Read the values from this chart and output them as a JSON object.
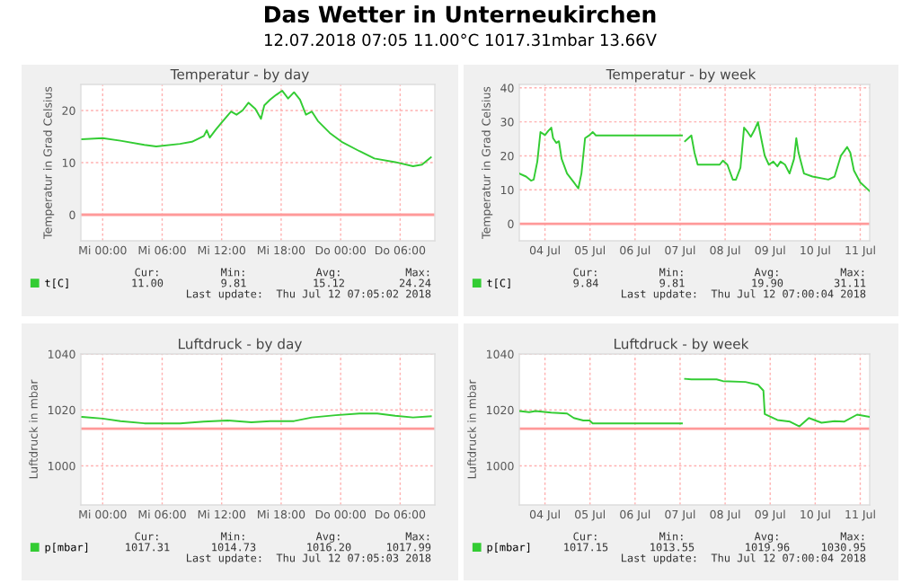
{
  "chart_data": [
    {
      "type": "other",
      "title": "Das Wetter in Unterneukirchen",
      "subtitle": "12.07.2018 07:05 11.00°C 1017.31mbar 13.66V"
    },
    {
      "type": "line",
      "title": "Temperatur - by day",
      "ylabel": "Temperatur in Grad Celsius",
      "x": [
        "2018-07-10T21:56",
        "2018-07-11T00:00",
        "2018-07-11T01:48",
        "2018-07-11T04:12",
        "2018-07-11T05:24",
        "2018-07-11T07:48",
        "2018-07-11T09:00",
        "2018-07-11T10:12",
        "2018-07-11T10:30",
        "2018-07-11T10:48",
        "2018-07-11T11:24",
        "2018-07-11T12:00",
        "2018-07-11T12:57",
        "2018-07-11T13:30",
        "2018-07-11T14:06",
        "2018-07-11T14:42",
        "2018-07-11T15:24",
        "2018-07-11T15:58",
        "2018-07-11T16:18",
        "2018-07-11T16:54",
        "2018-07-11T17:30",
        "2018-07-11T18:06",
        "2018-07-11T18:42",
        "2018-07-11T19:18",
        "2018-07-11T19:54",
        "2018-07-11T20:30",
        "2018-07-11T21:06",
        "2018-07-11T21:42",
        "2018-07-11T22:54",
        "2018-07-12T00:06",
        "2018-07-12T01:54",
        "2018-07-12T03:24",
        "2018-07-12T05:30",
        "2018-07-12T07:18",
        "2018-07-12T08:12",
        "2018-07-12T09:06"
      ],
      "series": [
        {
          "name": "t[C]",
          "color": "#33cc33",
          "values": [
            14.5,
            14.7,
            14.2,
            13.4,
            13.1,
            13.6,
            14.0,
            15.1,
            16.2,
            14.8,
            16.3,
            17.7,
            19.8,
            19.2,
            20.0,
            21.5,
            20.3,
            18.4,
            21.0,
            22.1,
            23.0,
            23.8,
            22.3,
            23.5,
            22.1,
            19.2,
            19.8,
            18.0,
            15.7,
            14.0,
            12.2,
            10.8,
            10.1,
            9.3,
            9.6,
            11.0
          ]
        }
      ],
      "xlim": [
        "2018-07-10T21:48",
        "2018-07-12T09:30"
      ],
      "ylim": [
        -5,
        25
      ],
      "xticks": [
        {
          "value": "2018-07-11T00:00",
          "label": "Mi 00:00"
        },
        {
          "value": "2018-07-11T06:00",
          "label": "Mi 06:00"
        },
        {
          "value": "2018-07-11T12:00",
          "label": "Mi 12:00"
        },
        {
          "value": "2018-07-11T18:00",
          "label": "Mi 18:00"
        },
        {
          "value": "2018-07-12T00:00",
          "label": "Do 00:00"
        },
        {
          "value": "2018-07-12T06:00",
          "label": "Do 06:00"
        }
      ],
      "yticks": [
        0,
        10,
        20
      ],
      "grid": true,
      "legend": "bottom left",
      "ref_lines": [
        {
          "axis": "y",
          "value": 0,
          "color": "#ff9999"
        }
      ],
      "annotations": [
        "Cur:",
        "Min:",
        "Avg:",
        "Max:",
        "11.00",
        "9.81",
        "15.12",
        "24.24",
        "Last update:  Thu Jul 12 07:05:02 2018"
      ]
    },
    {
      "type": "line",
      "title": "Temperatur - by week",
      "ylabel": "Temperatur in Grad Celsius",
      "x": [
        "2018-07-03T22:19",
        "2018-07-04T01:55",
        "2018-07-04T04:34",
        "2018-07-04T06:00",
        "2018-07-04T07:55",
        "2018-07-04T09:36",
        "2018-07-04T12:00",
        "2018-07-04T13:41",
        "2018-07-04T15:22",
        "2018-07-04T16:19",
        "2018-07-04T18:00",
        "2018-07-04T19:26",
        "2018-07-04T20:53",
        "2018-07-04T23:46",
        "2018-07-05T03:22",
        "2018-07-05T05:46",
        "2018-07-05T07:26",
        "2018-07-05T09:22",
        "2018-07-05T11:46",
        "2018-07-05T13:26",
        "2018-07-05T15:07",
        "2018-07-07T12:58",
        "2018-07-07T13:26",
        "2018-07-07T14:38",
        "2018-07-07T18:00",
        "2018-07-07T19:41",
        "2018-07-07T21:22",
        "2018-07-08T09:07",
        "2018-07-08T10:48",
        "2018-07-08T13:12",
        "2018-07-08T16:05",
        "2018-07-08T17:46",
        "2018-07-08T20:10",
        "2018-07-08T22:05",
        "2018-07-09T00:00",
        "2018-07-09T01:41",
        "2018-07-09T03:22",
        "2018-07-09T05:31",
        "2018-07-09T07:12",
        "2018-07-09T09:07",
        "2018-07-09T11:17",
        "2018-07-09T13:41",
        "2018-07-09T15:50",
        "2018-07-09T17:31",
        "2018-07-09T19:55",
        "2018-07-09T22:19",
        "2018-07-10T00:43",
        "2018-07-10T01:55",
        "2018-07-10T03:07",
        "2018-07-10T06:00",
        "2018-07-10T10:34",
        "2018-07-10T18:58",
        "2018-07-10T22:19",
        "2018-07-11T01:41",
        "2018-07-11T05:02",
        "2018-07-11T06:43",
        "2018-07-11T08:38",
        "2018-07-11T12:00",
        "2018-07-11T17:02"
      ],
      "series": [
        {
          "name": "t[C]",
          "color": "#33cc33",
          "values": [
            14.8,
            13.9,
            12.7,
            13.0,
            18.3,
            27.0,
            26.1,
            27.3,
            28.3,
            25.2,
            23.8,
            24.3,
            19.1,
            14.8,
            12.2,
            10.4,
            14.8,
            25.2,
            26.1,
            27.0,
            26.0,
            26.0,
            null,
            24.3,
            26.0,
            20.9,
            17.4,
            17.4,
            18.6,
            17.4,
            13.0,
            13.0,
            16.5,
            28.3,
            27.0,
            25.6,
            27.3,
            29.9,
            25.2,
            20.0,
            17.4,
            18.3,
            16.9,
            18.3,
            17.4,
            14.8,
            19.1,
            25.2,
            20.9,
            14.8,
            13.9,
            13.0,
            13.9,
            20.0,
            22.6,
            20.9,
            15.7,
            12.2,
            9.6
          ]
        }
      ],
      "xlim": [
        "2018-07-03T22:19",
        "2018-07-11T17:02"
      ],
      "ylim": [
        -5,
        41
      ],
      "xticks": [
        {
          "value": "2018-07-04T12:00",
          "label": "04 Jul"
        },
        {
          "value": "2018-07-05T12:00",
          "label": "05 Jul"
        },
        {
          "value": "2018-07-06T12:00",
          "label": "06 Jul"
        },
        {
          "value": "2018-07-07T12:00",
          "label": "07 Jul"
        },
        {
          "value": "2018-07-08T12:00",
          "label": "08 Jul"
        },
        {
          "value": "2018-07-09T12:00",
          "label": "09 Jul"
        },
        {
          "value": "2018-07-10T12:00",
          "label": "10 Jul"
        },
        {
          "value": "2018-07-11T12:00",
          "label": "11 Jul"
        }
      ],
      "yticks": [
        0,
        10,
        20,
        30,
        40
      ],
      "grid": true,
      "legend": "bottom left",
      "ref_lines": [
        {
          "axis": "y",
          "value": 0,
          "color": "#ff9999"
        }
      ],
      "annotations": [
        "Cur:",
        "Min:",
        "Avg:",
        "Max:",
        "9.84",
        "9.81",
        "19.90",
        "31.11",
        "Last update:  Thu Jul 12 07:00:04 2018"
      ]
    },
    {
      "type": "line",
      "title": "Luftdruck - by day",
      "ylabel": "Luftdruck in mbar",
      "x": [
        "2018-07-10T21:56",
        "2018-07-11T00:00",
        "2018-07-11T01:48",
        "2018-07-11T04:12",
        "2018-07-11T07:48",
        "2018-07-11T10:12",
        "2018-07-11T12:36",
        "2018-07-11T15:00",
        "2018-07-11T16:54",
        "2018-07-11T19:18",
        "2018-07-11T21:06",
        "2018-07-11T23:30",
        "2018-07-12T01:54",
        "2018-07-12T03:42",
        "2018-07-12T05:30",
        "2018-07-12T07:18",
        "2018-07-12T09:06"
      ],
      "series": [
        {
          "name": "p[mbar]",
          "color": "#33cc33",
          "values": [
            1017.5,
            1016.9,
            1016.0,
            1015.2,
            1015.2,
            1015.8,
            1016.2,
            1015.6,
            1016.0,
            1016.0,
            1017.3,
            1018.1,
            1018.7,
            1018.7,
            1017.9,
            1017.3,
            1017.7
          ]
        }
      ],
      "xlim": [
        "2018-07-10T21:48",
        "2018-07-12T09:30"
      ],
      "ylim": [
        986,
        1040
      ],
      "xticks": [
        {
          "value": "2018-07-11T00:00",
          "label": "Mi 00:00"
        },
        {
          "value": "2018-07-11T06:00",
          "label": "Mi 06:00"
        },
        {
          "value": "2018-07-11T12:00",
          "label": "Mi 12:00"
        },
        {
          "value": "2018-07-11T18:00",
          "label": "Mi 18:00"
        },
        {
          "value": "2018-07-12T00:00",
          "label": "Do 00:00"
        },
        {
          "value": "2018-07-12T06:00",
          "label": "Do 06:00"
        }
      ],
      "yticks": [
        1000,
        1020,
        1040
      ],
      "grid": true,
      "legend": "bottom left",
      "ref_lines": [
        {
          "axis": "y",
          "value": 1013.3,
          "color": "#ff9999"
        }
      ],
      "annotations": [
        "Cur:",
        "Min:",
        "Avg:",
        "Max:",
        "1017.31",
        "1014.73",
        "1016.20",
        "1017.99",
        "Last update:  Thu Jul 12 07:05:03 2018"
      ]
    },
    {
      "type": "line",
      "title": "Luftdruck - by week",
      "ylabel": "Luftdruck in mbar",
      "x": [
        "2018-07-03T22:19",
        "2018-07-04T03:36",
        "2018-07-04T06:58",
        "2018-07-04T15:22",
        "2018-07-04T23:46",
        "2018-07-05T03:22",
        "2018-07-05T08:24",
        "2018-07-05T11:46",
        "2018-07-05T13:26",
        "2018-07-07T12:58",
        "2018-07-07T13:26",
        "2018-07-07T14:38",
        "2018-07-07T18:00",
        "2018-07-08T07:26",
        "2018-07-08T10:48",
        "2018-07-08T22:48",
        "2018-07-09T05:31",
        "2018-07-09T08:24",
        "2018-07-09T09:07",
        "2018-07-09T15:50",
        "2018-07-09T22:34",
        "2018-07-10T03:36",
        "2018-07-10T08:38",
        "2018-07-10T15:22",
        "2018-07-10T22:19",
        "2018-07-11T03:22",
        "2018-07-11T10:19",
        "2018-07-11T17:02"
      ],
      "series": [
        {
          "name": "p[mbar]",
          "color": "#33cc33",
          "values": [
            1019.6,
            1019.2,
            1019.6,
            1019.0,
            1018.7,
            1017.1,
            1016.2,
            1016.2,
            1015.2,
            1015.2,
            null,
            1031.1,
            1030.9,
            1030.9,
            1030.3,
            1030.0,
            1029.0,
            1026.9,
            1018.5,
            1016.4,
            1015.8,
            1014.1,
            1017.1,
            1015.4,
            1016.0,
            1015.8,
            1018.3,
            1017.5
          ]
        }
      ],
      "xlim": [
        "2018-07-03T22:19",
        "2018-07-11T17:02"
      ],
      "ylim": [
        986,
        1040
      ],
      "xticks": [
        {
          "value": "2018-07-04T12:00",
          "label": "04 Jul"
        },
        {
          "value": "2018-07-05T12:00",
          "label": "05 Jul"
        },
        {
          "value": "2018-07-06T12:00",
          "label": "06 Jul"
        },
        {
          "value": "2018-07-07T12:00",
          "label": "07 Jul"
        },
        {
          "value": "2018-07-08T12:00",
          "label": "08 Jul"
        },
        {
          "value": "2018-07-09T12:00",
          "label": "09 Jul"
        },
        {
          "value": "2018-07-10T12:00",
          "label": "10 Jul"
        },
        {
          "value": "2018-07-11T12:00",
          "label": "11 Jul"
        }
      ],
      "yticks": [
        1000,
        1020,
        1040
      ],
      "grid": true,
      "legend": "bottom left",
      "ref_lines": [
        {
          "axis": "y",
          "value": 1013.3,
          "color": "#ff9999"
        }
      ],
      "annotations": [
        "Cur:",
        "Min:",
        "Avg:",
        "Max:",
        "1017.15",
        "1013.55",
        "1019.96",
        "1030.95",
        "Last update:  Thu Jul 12 07:00:04 2018"
      ]
    }
  ]
}
